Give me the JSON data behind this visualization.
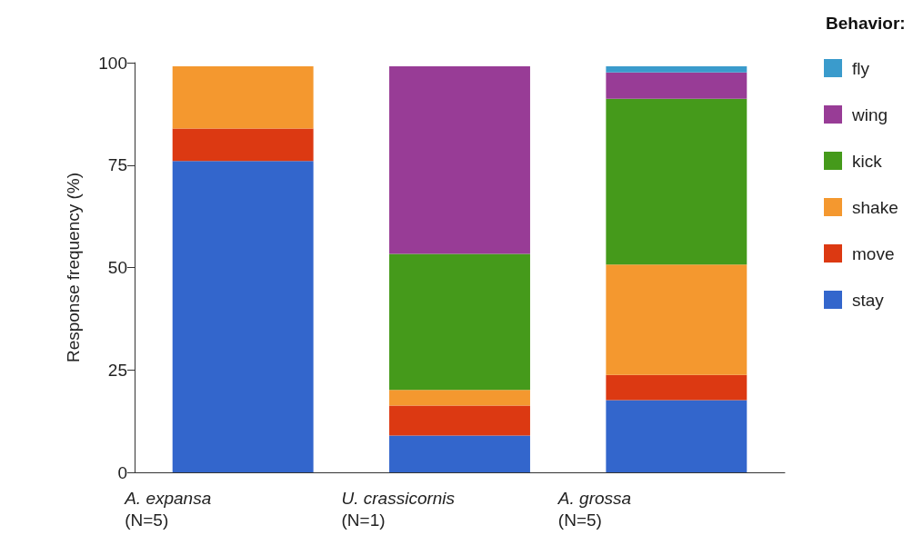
{
  "chart_data": {
    "type": "bar",
    "stacked": true,
    "ylabel": "Response frequency (%)",
    "legend_title": "Behavior:",
    "legend": "top right",
    "grid": false,
    "categories": [
      "A. expansa\n(N=5)",
      "U. crassicornis\n(N=1)",
      "A. grossa\n(N=5)"
    ],
    "ylim": [
      0,
      100
    ],
    "yticks": [
      0,
      25,
      50,
      75,
      100
    ],
    "series": [
      {
        "name": "stay",
        "color": "#3366cc",
        "values": [
          76.0,
          9.0,
          17.6
        ]
      },
      {
        "name": "move",
        "color": "#dc3912",
        "values": [
          7.9,
          7.3,
          6.2
        ]
      },
      {
        "name": "shake",
        "color": "#f4982f",
        "values": [
          15.2,
          3.8,
          26.9
        ]
      },
      {
        "name": "kick",
        "color": "#459a1b",
        "values": [
          0,
          33.2,
          40.5
        ]
      },
      {
        "name": "wing",
        "color": "#983c96",
        "values": [
          0,
          45.8,
          6.4
        ]
      },
      {
        "name": "fly",
        "color": "#3a9bcc",
        "values": [
          0,
          0,
          1.5
        ]
      }
    ]
  }
}
